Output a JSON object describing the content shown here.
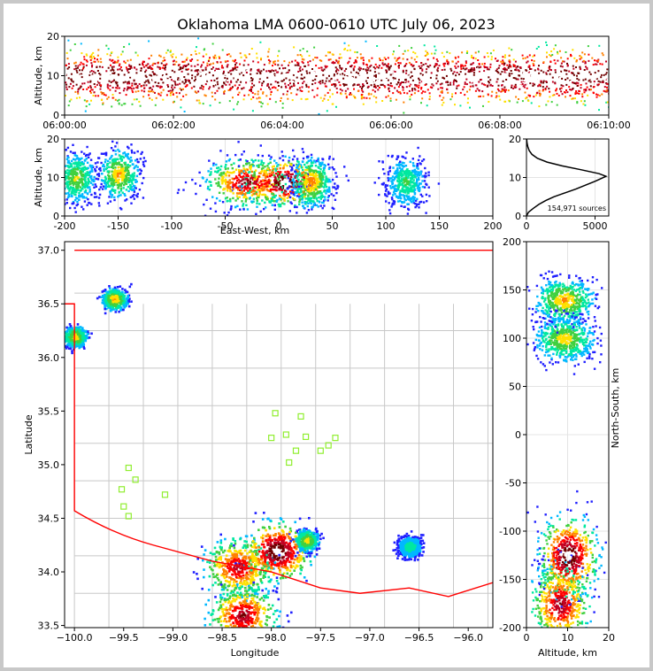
{
  "chart_data": [
    {
      "type": "heatmap",
      "panel": "altitude-time",
      "title": "Oklahoma LMA 0600-0610 UTC July 06, 2023",
      "xlabel": "",
      "ylabel": "Altitude, km",
      "x_ticks": [
        "06:00:00",
        "06:02:00",
        "06:04:00",
        "06:06:00",
        "06:08:00",
        "06:10:00"
      ],
      "y_ticks": [
        "0",
        "10",
        "20"
      ],
      "xlim": [
        "06:00:00",
        "06:10:00"
      ],
      "ylim": [
        0,
        20
      ],
      "peak_altitude_km": 10
    },
    {
      "type": "heatmap",
      "panel": "altitude-east-west",
      "xlabel": "East-West, km",
      "ylabel": "Altitude, km",
      "x_ticks": [
        "-200",
        "-150",
        "-100",
        "-50",
        "0",
        "50",
        "100",
        "150",
        "200"
      ],
      "y_ticks": [
        "0",
        "10",
        "20"
      ],
      "xlim": [
        -200,
        200
      ],
      "ylim": [
        0,
        20
      ],
      "grid": true,
      "clusters": [
        {
          "x": -190,
          "z": 10,
          "intensity": 0.45
        },
        {
          "x": -150,
          "z": 11,
          "intensity": 0.55
        },
        {
          "x": -30,
          "z": 9,
          "intensity": 0.85
        },
        {
          "x": 5,
          "z": 9,
          "intensity": 1.0
        },
        {
          "x": 30,
          "z": 9,
          "intensity": 0.6
        },
        {
          "x": 118,
          "z": 9,
          "intensity": 0.35
        }
      ]
    },
    {
      "type": "line",
      "panel": "source-histogram",
      "x_ticks": [
        "0",
        "5000"
      ],
      "y_ticks": [
        "0",
        "10",
        "20"
      ],
      "xlim": [
        0,
        6000
      ],
      "ylim": [
        0,
        20
      ],
      "annotation": "154,971 sources",
      "points": [
        [
          0,
          0
        ],
        [
          150,
          1
        ],
        [
          500,
          2
        ],
        [
          900,
          3
        ],
        [
          1400,
          4
        ],
        [
          2000,
          5
        ],
        [
          2800,
          6
        ],
        [
          3600,
          7
        ],
        [
          4300,
          8
        ],
        [
          5000,
          9
        ],
        [
          5800,
          10.3
        ],
        [
          5300,
          11
        ],
        [
          4000,
          12
        ],
        [
          2600,
          13
        ],
        [
          1500,
          14
        ],
        [
          800,
          15
        ],
        [
          400,
          16
        ],
        [
          200,
          17
        ],
        [
          100,
          18
        ],
        [
          40,
          19
        ],
        [
          10,
          20
        ]
      ]
    },
    {
      "type": "heatmap",
      "panel": "plan-view",
      "xlabel": "Longitude",
      "ylabel": "Latitude",
      "x_ticks": [
        "−100.0",
        "−99.5",
        "−99.0",
        "−98.5",
        "−98.0",
        "−97.5",
        "−97.0",
        "−96.5",
        "−96.0"
      ],
      "y_ticks": [
        "33.5",
        "34.0",
        "34.5",
        "35.0",
        "35.5",
        "36.0",
        "36.5",
        "37.0"
      ],
      "xlim": [
        -100.1,
        -95.75
      ],
      "ylim": [
        33.48,
        37.08
      ],
      "clusters": [
        {
          "lon": -100.0,
          "lat": 36.2,
          "intensity": 0.5
        },
        {
          "lon": -99.6,
          "lat": 36.55,
          "intensity": 0.55
        },
        {
          "lon": -98.35,
          "lat": 34.05,
          "intensity": 0.8
        },
        {
          "lon": -97.95,
          "lat": 34.2,
          "intensity": 1.0
        },
        {
          "lon": -98.3,
          "lat": 33.6,
          "intensity": 0.85
        },
        {
          "lon": -97.65,
          "lat": 34.3,
          "intensity": 0.5
        },
        {
          "lon": -96.6,
          "lat": 34.24,
          "intensity": 0.3
        }
      ],
      "stations": [
        {
          "lon": -99.45,
          "lat": 34.97
        },
        {
          "lon": -99.38,
          "lat": 34.86
        },
        {
          "lon": -99.52,
          "lat": 34.77
        },
        {
          "lon": -99.5,
          "lat": 34.61
        },
        {
          "lon": -99.45,
          "lat": 34.52
        },
        {
          "lon": -99.08,
          "lat": 34.72
        },
        {
          "lon": -97.96,
          "lat": 35.48
        },
        {
          "lon": -97.7,
          "lat": 35.45
        },
        {
          "lon": -98.0,
          "lat": 35.25
        },
        {
          "lon": -97.85,
          "lat": 35.28
        },
        {
          "lon": -97.65,
          "lat": 35.26
        },
        {
          "lon": -97.35,
          "lat": 35.25
        },
        {
          "lon": -97.42,
          "lat": 35.18
        },
        {
          "lon": -97.5,
          "lat": 35.13
        },
        {
          "lon": -97.75,
          "lat": 35.13
        },
        {
          "lon": -97.82,
          "lat": 35.02
        }
      ]
    },
    {
      "type": "heatmap",
      "panel": "north-south-altitude",
      "xlabel": "Altitude, km",
      "ylabel": "North-South, km",
      "x_ticks": [
        "0",
        "10",
        "20"
      ],
      "y_ticks": [
        "200",
        "150",
        "100",
        "50",
        "0",
        "-50",
        "-100",
        "-150",
        "-200"
      ],
      "xlim": [
        0,
        20
      ],
      "ylim": [
        -200,
        200
      ],
      "grid": true,
      "clusters": [
        {
          "z": 9,
          "y": 140,
          "intensity": 0.55
        },
        {
          "z": 9,
          "y": 100,
          "intensity": 0.5
        },
        {
          "z": 10,
          "y": -125,
          "intensity": 1.0
        },
        {
          "z": 8,
          "y": -175,
          "intensity": 0.85
        }
      ]
    }
  ],
  "colors": {
    "state_border": "#ff0000",
    "county_lines": "#c8c8c8",
    "station_marker": "#90ee30",
    "frame_background": "#c8c8c8"
  }
}
